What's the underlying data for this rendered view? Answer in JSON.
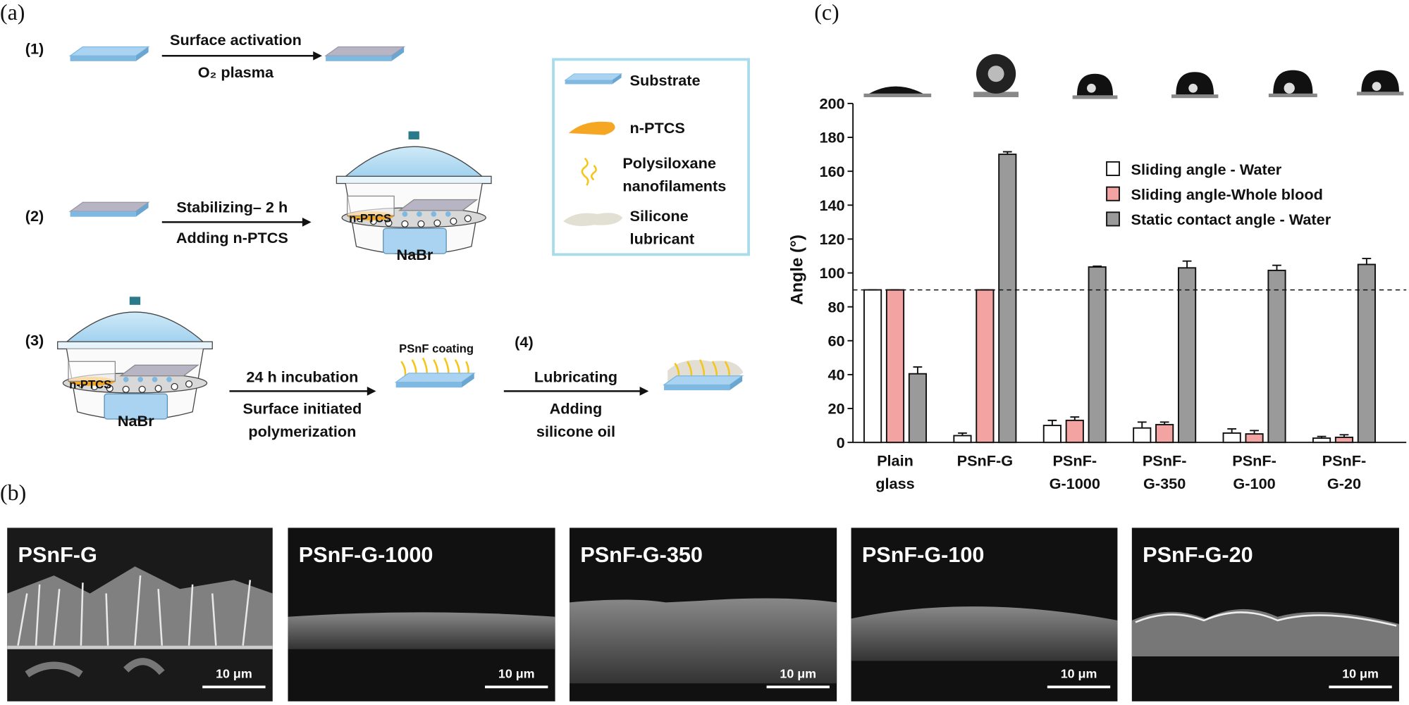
{
  "panel_labels": [
    "(a)",
    "(b)",
    "(c)"
  ],
  "diagram": {
    "steps": [
      {
        "label": "(1)",
        "above": "Surface activation",
        "below": "O₂ plasma"
      },
      {
        "label": "(2)",
        "above": "Stabilizing– 2 h",
        "below": "Adding n-PTCS",
        "dish": "n-PTCS",
        "salt": "NaBr"
      },
      {
        "label": "(3)",
        "above": "24 h incubation",
        "below": "Surface initiated\npolymerization",
        "dish": "n-PTCS",
        "salt": "NaBr",
        "product": "PSnF coating"
      },
      {
        "label": "(4)",
        "above": "Lubricating",
        "below": "Adding\nsilicone oil"
      }
    ],
    "legend": [
      "Substrate",
      "n-PTCS",
      "Polysiloxane\nnanofilaments",
      "Silicone\nlubricant"
    ]
  },
  "sem_images": [
    {
      "label": "PSnF-G",
      "scale_bar": "10 μm"
    },
    {
      "label": "PSnF-G-1000",
      "scale_bar": "10 μm"
    },
    {
      "label": "PSnF-G-350",
      "scale_bar": "10 μm"
    },
    {
      "label": "PSnF-G-100",
      "scale_bar": "10 μm"
    },
    {
      "label": "PSnF-G-20",
      "scale_bar": "10 μm"
    }
  ],
  "chart_data": {
    "type": "bar",
    "ylabel": "Angle (°)",
    "categories": [
      "Plain\nglass",
      "PSnF-G",
      "PSnF-\nG-1000",
      "PSnF-\nG-350",
      "PSnF-\nG-100",
      "PSnF-\nG-20"
    ],
    "series": [
      {
        "name": "Sliding angle - Water",
        "color": "#ffffff",
        "values": [
          90,
          4,
          10,
          8.5,
          5.5,
          2.5
        ],
        "errors": [
          0,
          1.5,
          3,
          3.5,
          2.5,
          1
        ]
      },
      {
        "name": "Sliding angle-Whole blood",
        "color": "#f4a3a3",
        "values": [
          90,
          90,
          13,
          10.5,
          5,
          3
        ],
        "errors": [
          0,
          0,
          2,
          1.5,
          2,
          1.5
        ]
      },
      {
        "name": "Static contact angle - Water",
        "color": "#9a9a9a",
        "values": [
          40.5,
          170,
          103.5,
          103,
          101.5,
          105
        ],
        "errors": [
          4,
          1.5,
          0.5,
          4,
          3,
          3.5
        ]
      }
    ],
    "ylim": [
      0,
      200
    ],
    "yticks": [
      0,
      20,
      40,
      60,
      80,
      100,
      120,
      140,
      160,
      180,
      200
    ],
    "reference_line": 90,
    "legend": "upper right"
  }
}
